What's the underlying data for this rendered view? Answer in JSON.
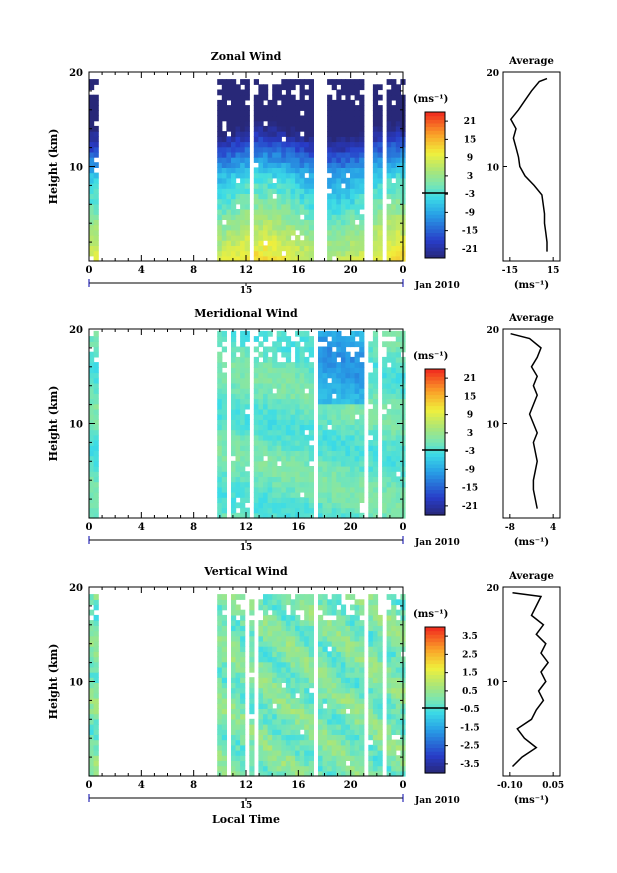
{
  "chart_data": [
    {
      "type": "heatmap",
      "title": "Zonal Wind",
      "ylabel": "Height (km)",
      "ylim": [
        0,
        20
      ],
      "yticks": [
        "10",
        "20"
      ],
      "xticks": [
        "0",
        "4",
        "8",
        "12",
        "16",
        "20",
        "0"
      ],
      "date_tick": "15",
      "date_label": "Jan 2010",
      "colorbar": {
        "unit": "(ms⁻¹)",
        "ticks": [
          "21",
          "15",
          "9",
          "3",
          "-3",
          "-9",
          "-15",
          "-21"
        ],
        "range": [
          -24,
          24
        ]
      },
      "average": {
        "title": "Average",
        "xticks": [
          "-15",
          "15"
        ],
        "xlim": [
          -22,
          22
        ],
        "unit": "(ms⁻¹)",
        "profile": [
          [
            12,
            1
          ],
          [
            12,
            2
          ],
          [
            11,
            3
          ],
          [
            10,
            4
          ],
          [
            10,
            5
          ],
          [
            9,
            6
          ],
          [
            8,
            7
          ],
          [
            2,
            8
          ],
          [
            -5,
            9
          ],
          [
            -9,
            10
          ],
          [
            -10,
            11
          ],
          [
            -12,
            12
          ],
          [
            -14,
            13
          ],
          [
            -12,
            14
          ],
          [
            -16,
            15
          ],
          [
            -10,
            16
          ],
          [
            -5,
            17
          ],
          [
            0,
            18
          ],
          [
            6,
            19
          ],
          [
            12,
            19.3
          ]
        ]
      },
      "gaps": [
        [
          0.6,
          9.5
        ],
        [
          12.0,
          12.5
        ],
        [
          17.0,
          18.0
        ],
        [
          21.0,
          21.4
        ],
        [
          22.3,
          22.6
        ]
      ]
    },
    {
      "type": "heatmap",
      "title": "Meridional Wind",
      "ylabel": "Height (km)",
      "ylim": [
        0,
        20
      ],
      "yticks": [
        "10",
        "20"
      ],
      "xticks": [
        "0",
        "4",
        "8",
        "12",
        "16",
        "20",
        "0"
      ],
      "date_tick": "15",
      "date_label": "Jan 2010",
      "colorbar": {
        "unit": "(ms⁻¹)",
        "ticks": [
          "21",
          "15",
          "9",
          "3",
          "-3",
          "-9",
          "-15",
          "-21"
        ],
        "range": [
          -24,
          24
        ]
      },
      "average": {
        "title": "Average",
        "xticks": [
          "-8",
          "4"
        ],
        "xlim": [
          -10,
          5
        ],
        "unit": "(ms⁻¹)",
        "profile": [
          [
            -1,
            1
          ],
          [
            -1.5,
            2
          ],
          [
            -2,
            3
          ],
          [
            -2,
            4
          ],
          [
            -1.5,
            5
          ],
          [
            -1,
            6
          ],
          [
            -1.5,
            7
          ],
          [
            -2,
            8
          ],
          [
            -1,
            9
          ],
          [
            -2,
            10
          ],
          [
            -3,
            11
          ],
          [
            -2,
            12
          ],
          [
            -1,
            13
          ],
          [
            -2,
            14
          ],
          [
            -1,
            15
          ],
          [
            -2.5,
            16
          ],
          [
            -1,
            17
          ],
          [
            0,
            18
          ],
          [
            -3,
            19
          ],
          [
            -8,
            19.5
          ]
        ]
      },
      "gaps": [
        [
          0.6,
          9.5
        ],
        [
          10.2,
          10.5
        ],
        [
          11.2,
          11.4
        ],
        [
          12.0,
          12.4
        ],
        [
          17.0,
          17.3
        ],
        [
          21.0,
          21.3
        ],
        [
          22.0,
          22.3
        ]
      ]
    },
    {
      "type": "heatmap",
      "title": "Vertical Wind",
      "ylabel": "Height (km)",
      "ylim": [
        0,
        20
      ],
      "yticks": [
        "10",
        "20"
      ],
      "xticks": [
        "0",
        "4",
        "8",
        "12",
        "16",
        "20",
        "0"
      ],
      "date_tick": "15",
      "date_label": "Jan 2010",
      "xlabel": "Local Time",
      "colorbar": {
        "unit": "(ms⁻¹)",
        "ticks": [
          "3.5",
          "2.5",
          "1.5",
          "0.5",
          "-0.5",
          "-1.5",
          "-2.5",
          "-3.5"
        ],
        "range": [
          -4,
          4
        ]
      },
      "average": {
        "title": "Average",
        "xticks": [
          "-0.10",
          "0.05"
        ],
        "xlim": [
          -0.14,
          0.1
        ],
        "unit": "(ms⁻¹)",
        "profile": [
          [
            -0.1,
            1
          ],
          [
            -0.06,
            2
          ],
          [
            0.0,
            3
          ],
          [
            -0.05,
            4
          ],
          [
            -0.08,
            5
          ],
          [
            -0.02,
            6
          ],
          [
            0.0,
            7
          ],
          [
            0.03,
            8
          ],
          [
            0.01,
            9
          ],
          [
            0.04,
            10
          ],
          [
            0.02,
            11
          ],
          [
            0.05,
            12
          ],
          [
            0.02,
            13
          ],
          [
            0.04,
            14
          ],
          [
            0.0,
            15
          ],
          [
            0.03,
            16
          ],
          [
            -0.02,
            17
          ],
          [
            0.0,
            18
          ],
          [
            0.02,
            19
          ],
          [
            -0.1,
            19.4
          ]
        ]
      },
      "gaps": [
        [
          0.6,
          9.5
        ],
        [
          10.3,
          10.6
        ],
        [
          11.6,
          12.0
        ],
        [
          12.4,
          12.7
        ],
        [
          17.0,
          17.4
        ],
        [
          21.0,
          21.3
        ],
        [
          22.3,
          22.6
        ]
      ]
    }
  ]
}
